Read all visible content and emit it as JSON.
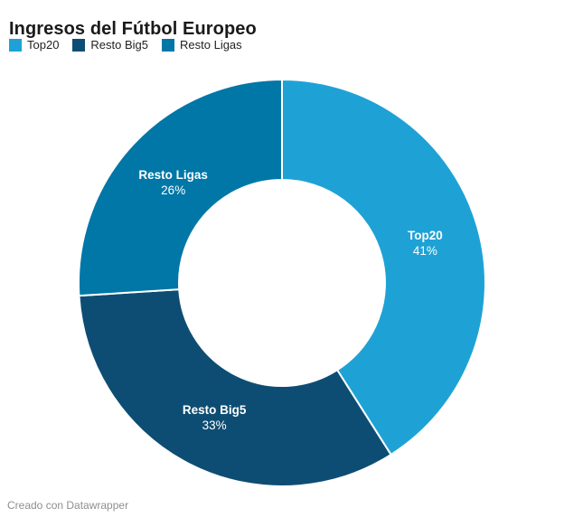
{
  "chart_data": {
    "type": "pie",
    "subtype": "donut",
    "title": "Ingresos del Fútbol Europeo",
    "direction": "clockwise",
    "start_angle_deg": 0,
    "inner_radius_ratio": 0.507,
    "legend_position": "top-left",
    "separator_color": "#ffffff",
    "slices": [
      {
        "label": "Top20",
        "value_pct": 41,
        "pct_label": "41%",
        "color": "#1EA2D6"
      },
      {
        "label": "Resto Big5",
        "value_pct": 33,
        "pct_label": "33%",
        "color": "#0E4D73"
      },
      {
        "label": "Resto Ligas",
        "value_pct": 26,
        "pct_label": "26%",
        "color": "#0077A6"
      }
    ]
  },
  "footer": {
    "credit": "Creado con Datawrapper"
  }
}
